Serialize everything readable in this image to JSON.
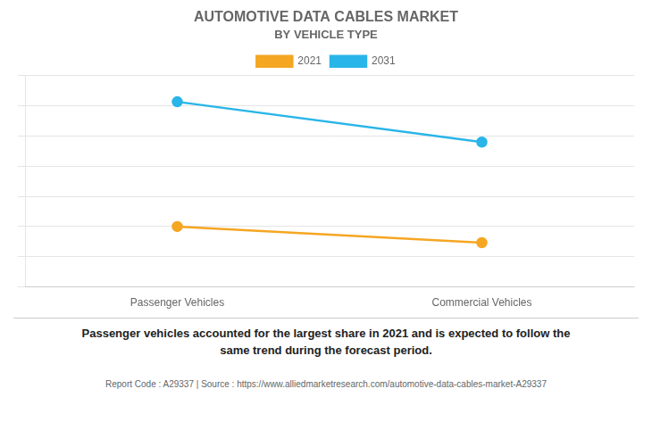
{
  "chart_data": {
    "type": "line",
    "title": "AUTOMOTIVE DATA CABLES MARKET",
    "subtitle": "BY VEHICLE TYPE",
    "categories": [
      "Passenger Vehicles",
      "Commercial Vehicles"
    ],
    "series": [
      {
        "name": "2021",
        "color": "#F5A623",
        "values": [
          0.3,
          0.22
        ]
      },
      {
        "name": "2031",
        "color": "#29B5E8",
        "values": [
          0.92,
          0.72
        ]
      }
    ],
    "ylim": [
      0.0,
      1.05
    ],
    "yticks": [
      0,
      0.15,
      0.3,
      0.45,
      0.6,
      0.75,
      0.9,
      1.05
    ],
    "grid": true,
    "tick_labels": "x",
    "legend": "top",
    "marker": "circle",
    "annotation": "Passenger vehicles accounted for the largest share in 2021 and is expected to follow the\nsame trend during the forecast period.",
    "footer": "Report Code : A29337  |  Source : https://www.alliedmarketresearch.com/automotive-data-cables-market-A29337"
  }
}
